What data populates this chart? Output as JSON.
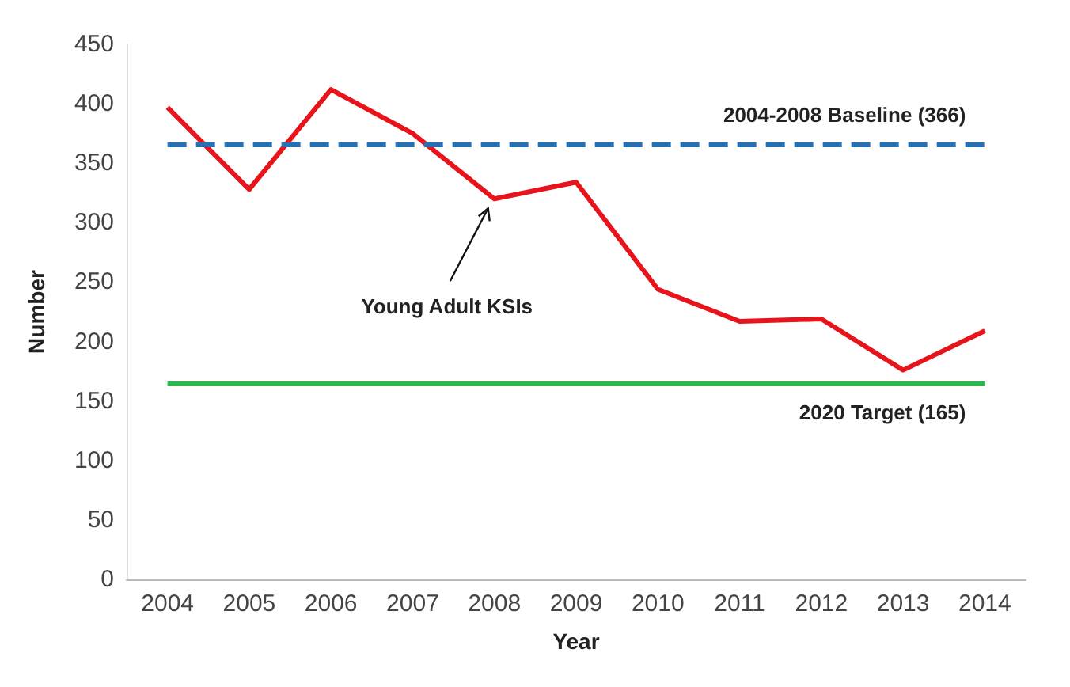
{
  "chart_data": {
    "type": "line",
    "xlabel": "Year",
    "ylabel": "Number",
    "categories": [
      "2004",
      "2005",
      "2006",
      "2007",
      "2008",
      "2009",
      "2010",
      "2011",
      "2012",
      "2013",
      "2014"
    ],
    "series": [
      {
        "color": "#e8141c",
        "values": [
          397,
          328,
          412,
          375,
          320,
          334,
          244,
          217,
          219,
          176,
          209
        ]
      }
    ],
    "ylim": [
      0,
      450
    ],
    "yticks": [
      0,
      50,
      100,
      150,
      200,
      250,
      300,
      350,
      400,
      450
    ],
    "grid": false,
    "marker": "none",
    "line_style": "solid",
    "ref_lines": [
      {
        "axis": "y",
        "value": 366,
        "label": "2004-2008 Baseline (366)",
        "color": "#2471b5",
        "line_style": "dashed"
      },
      {
        "axis": "y",
        "value": 165,
        "label": "2020 Target (165)",
        "color": "#2db84d",
        "line_style": "solid"
      }
    ],
    "annotations": [
      {
        "text": "Young Adult KSIs",
        "x": "2008",
        "y": 320
      }
    ]
  }
}
